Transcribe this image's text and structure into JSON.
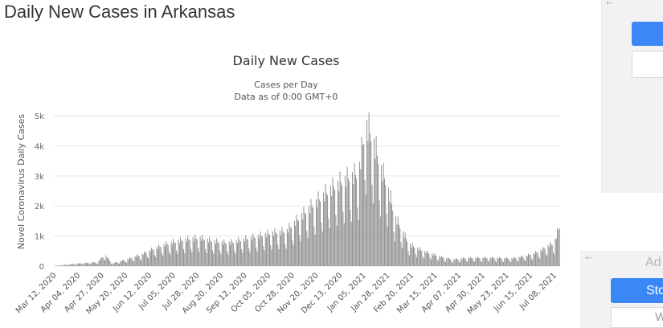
{
  "page": {
    "title": "Daily New Cases in Arkansas"
  },
  "sidebar": {
    "back_arrow_top": "←",
    "back_arrow_bottom": "←",
    "add_text": "Ad",
    "store_label": "Sto",
    "w_text": "W"
  },
  "colors": {
    "bars": "#8c8c8c",
    "grid": "#e6e6e6",
    "accent_blue": "#3a87f5",
    "panel_bg": "#f2f2f2"
  },
  "chart_data": {
    "type": "bar",
    "title": "Daily New Cases",
    "subtitle_line1": "Cases per Day",
    "subtitle_line2": "Data as of 0:00 GMT+0",
    "ylabel": "Novel Coronavirus Daily Cases",
    "xlabel": "",
    "ylim": [
      0,
      5000
    ],
    "y_ticks": [
      0,
      1000,
      2000,
      3000,
      4000,
      5000
    ],
    "y_tick_labels": [
      "0",
      "1k",
      "2k",
      "3k",
      "4k",
      "5k"
    ],
    "x_start": "Mar 12, 2020",
    "x_end": "Jul 13, 2021",
    "x_tick_labels": [
      "Mar 12, 2020",
      "Apr 04, 2020",
      "Apr 27, 2020",
      "May 20, 2020",
      "Jun 12, 2020",
      "Jul 05, 2020",
      "Jul 28, 2020",
      "Aug 20, 2020",
      "Sep 12, 2020",
      "Oct 05, 2020",
      "Oct 28, 2020",
      "Nov 20, 2020",
      "Dec 13, 2020",
      "Jan 05, 2021",
      "Jan 28, 2021",
      "Feb 20, 2021",
      "Mar 15, 2021",
      "Apr 07, 2021",
      "Apr 30, 2021",
      "May 23, 2021",
      "Jun 15, 2021",
      "Jul 08, 2021"
    ],
    "grid": true,
    "legend": "none",
    "weekly_pattern_note": "",
    "series": [
      {
        "x": [
          "Mar 12, 2020",
          "Mar 26, 2020",
          "Apr 09, 2020",
          "Apr 23, 2020",
          "Apr 30, 2020",
          "May 07, 2020",
          "May 21, 2020",
          "Jun 04, 2020",
          "Jun 18, 2020",
          "Jul 02, 2020",
          "Jul 16, 2020",
          "Jul 30, 2020",
          "Aug 13, 2020",
          "Aug 27, 2020",
          "Sep 10, 2020",
          "Sep 24, 2020",
          "Oct 08, 2020",
          "Oct 22, 2020",
          "Nov 05, 2020",
          "Nov 19, 2020",
          "Dec 03, 2020",
          "Dec 17, 2020",
          "Dec 31, 2020",
          "Jan 07, 2021",
          "Jan 14, 2021",
          "Jan 21, 2021",
          "Jan 28, 2021",
          "Feb 04, 2021",
          "Feb 18, 2021",
          "Mar 04, 2021",
          "Mar 18, 2021",
          "Apr 01, 2021",
          "Apr 15, 2021",
          "Apr 29, 2021",
          "May 13, 2021",
          "May 27, 2021",
          "Jun 10, 2021",
          "Jun 24, 2021",
          "Jul 01, 2021",
          "Jul 08, 2021",
          "Jul 13, 2021"
        ],
        "values": [
          5,
          50,
          90,
          120,
          350,
          80,
          200,
          350,
          550,
          700,
          800,
          850,
          750,
          700,
          800,
          900,
          1000,
          1050,
          1500,
          1900,
          2300,
          2600,
          2800,
          4300,
          3800,
          3000,
          2400,
          1500,
          650,
          450,
          300,
          200,
          250,
          250,
          250,
          230,
          300,
          450,
          600,
          700,
          1200
        ]
      }
    ]
  }
}
